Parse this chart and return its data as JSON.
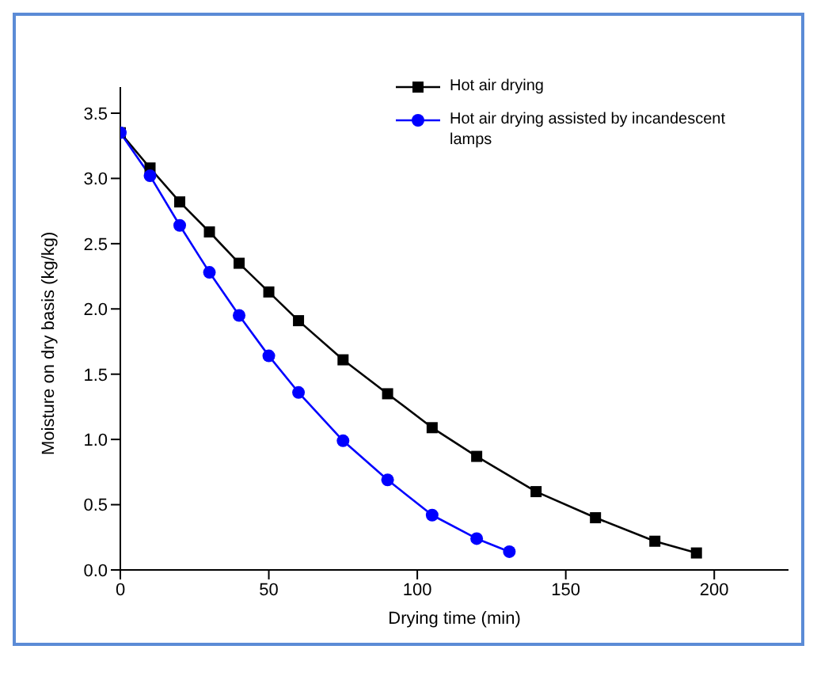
{
  "chart_data": {
    "type": "line",
    "xlabel": "Drying time (min)",
    "ylabel": "Moisture on dry basis (kg/kg)",
    "xlim": [
      0,
      225
    ],
    "xticks": [
      0,
      50,
      100,
      150,
      200
    ],
    "ylim": [
      0,
      3.7
    ],
    "yticks": [
      {
        "value": 0,
        "label": "0.0"
      },
      0.5,
      {
        "value": 1,
        "label": "1.0"
      },
      1.5,
      {
        "value": 2,
        "label": "2.0"
      },
      2.5,
      {
        "value": 3,
        "label": "3.0"
      },
      3.5
    ],
    "grid": false,
    "legend": "top right",
    "line_style": "solid",
    "series": [
      {
        "name": "Hot air drying",
        "color": "#000000",
        "marker": "square",
        "x": [
          0,
          10,
          20,
          30,
          40,
          50,
          60,
          75,
          90,
          105,
          120,
          140,
          160,
          180,
          194
        ],
        "values": [
          3.35,
          3.08,
          2.82,
          2.59,
          2.35,
          2.13,
          1.91,
          1.61,
          1.35,
          1.09,
          0.87,
          0.6,
          0.4,
          0.22,
          0.13
        ]
      },
      {
        "name": "Hot air drying assisted by incandescent lamps",
        "color": "#0000ff",
        "marker": "circle",
        "x": [
          0,
          10,
          20,
          30,
          40,
          50,
          60,
          75,
          90,
          105,
          120,
          131
        ],
        "values": [
          3.35,
          3.02,
          2.64,
          2.28,
          1.95,
          1.64,
          1.36,
          0.99,
          0.69,
          0.42,
          0.24,
          0.14
        ]
      }
    ]
  }
}
